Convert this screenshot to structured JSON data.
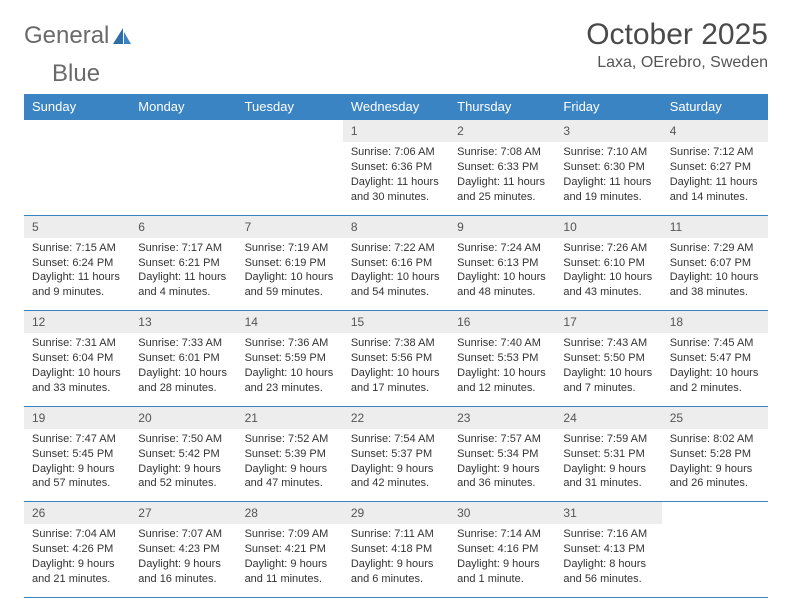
{
  "logo": {
    "text1": "General",
    "text2": "Blue",
    "brand_color": "#3b84c4"
  },
  "title": "October 2025",
  "subtitle": "Laxa, OErebro, Sweden",
  "colors": {
    "header_bg": "#3b84c4",
    "header_text": "#ffffff",
    "daynum_bg": "#ededed",
    "row_border": "#3b84c4",
    "body_text": "#333333"
  },
  "font": {
    "title_size": 30,
    "subtitle_size": 16,
    "dayhdr_size": 13,
    "cell_size": 11
  },
  "day_headers": [
    "Sunday",
    "Monday",
    "Tuesday",
    "Wednesday",
    "Thursday",
    "Friday",
    "Saturday"
  ],
  "weeks": [
    [
      {
        "n": "",
        "l": [
          "",
          "",
          ""
        ]
      },
      {
        "n": "",
        "l": [
          "",
          "",
          ""
        ]
      },
      {
        "n": "",
        "l": [
          "",
          "",
          ""
        ]
      },
      {
        "n": "1",
        "l": [
          "Sunrise: 7:06 AM",
          "Sunset: 6:36 PM",
          "Daylight: 11 hours and 30 minutes."
        ]
      },
      {
        "n": "2",
        "l": [
          "Sunrise: 7:08 AM",
          "Sunset: 6:33 PM",
          "Daylight: 11 hours and 25 minutes."
        ]
      },
      {
        "n": "3",
        "l": [
          "Sunrise: 7:10 AM",
          "Sunset: 6:30 PM",
          "Daylight: 11 hours and 19 minutes."
        ]
      },
      {
        "n": "4",
        "l": [
          "Sunrise: 7:12 AM",
          "Sunset: 6:27 PM",
          "Daylight: 11 hours and 14 minutes."
        ]
      }
    ],
    [
      {
        "n": "5",
        "l": [
          "Sunrise: 7:15 AM",
          "Sunset: 6:24 PM",
          "Daylight: 11 hours and 9 minutes."
        ]
      },
      {
        "n": "6",
        "l": [
          "Sunrise: 7:17 AM",
          "Sunset: 6:21 PM",
          "Daylight: 11 hours and 4 minutes."
        ]
      },
      {
        "n": "7",
        "l": [
          "Sunrise: 7:19 AM",
          "Sunset: 6:19 PM",
          "Daylight: 10 hours and 59 minutes."
        ]
      },
      {
        "n": "8",
        "l": [
          "Sunrise: 7:22 AM",
          "Sunset: 6:16 PM",
          "Daylight: 10 hours and 54 minutes."
        ]
      },
      {
        "n": "9",
        "l": [
          "Sunrise: 7:24 AM",
          "Sunset: 6:13 PM",
          "Daylight: 10 hours and 48 minutes."
        ]
      },
      {
        "n": "10",
        "l": [
          "Sunrise: 7:26 AM",
          "Sunset: 6:10 PM",
          "Daylight: 10 hours and 43 minutes."
        ]
      },
      {
        "n": "11",
        "l": [
          "Sunrise: 7:29 AM",
          "Sunset: 6:07 PM",
          "Daylight: 10 hours and 38 minutes."
        ]
      }
    ],
    [
      {
        "n": "12",
        "l": [
          "Sunrise: 7:31 AM",
          "Sunset: 6:04 PM",
          "Daylight: 10 hours and 33 minutes."
        ]
      },
      {
        "n": "13",
        "l": [
          "Sunrise: 7:33 AM",
          "Sunset: 6:01 PM",
          "Daylight: 10 hours and 28 minutes."
        ]
      },
      {
        "n": "14",
        "l": [
          "Sunrise: 7:36 AM",
          "Sunset: 5:59 PM",
          "Daylight: 10 hours and 23 minutes."
        ]
      },
      {
        "n": "15",
        "l": [
          "Sunrise: 7:38 AM",
          "Sunset: 5:56 PM",
          "Daylight: 10 hours and 17 minutes."
        ]
      },
      {
        "n": "16",
        "l": [
          "Sunrise: 7:40 AM",
          "Sunset: 5:53 PM",
          "Daylight: 10 hours and 12 minutes."
        ]
      },
      {
        "n": "17",
        "l": [
          "Sunrise: 7:43 AM",
          "Sunset: 5:50 PM",
          "Daylight: 10 hours and 7 minutes."
        ]
      },
      {
        "n": "18",
        "l": [
          "Sunrise: 7:45 AM",
          "Sunset: 5:47 PM",
          "Daylight: 10 hours and 2 minutes."
        ]
      }
    ],
    [
      {
        "n": "19",
        "l": [
          "Sunrise: 7:47 AM",
          "Sunset: 5:45 PM",
          "Daylight: 9 hours and 57 minutes."
        ]
      },
      {
        "n": "20",
        "l": [
          "Sunrise: 7:50 AM",
          "Sunset: 5:42 PM",
          "Daylight: 9 hours and 52 minutes."
        ]
      },
      {
        "n": "21",
        "l": [
          "Sunrise: 7:52 AM",
          "Sunset: 5:39 PM",
          "Daylight: 9 hours and 47 minutes."
        ]
      },
      {
        "n": "22",
        "l": [
          "Sunrise: 7:54 AM",
          "Sunset: 5:37 PM",
          "Daylight: 9 hours and 42 minutes."
        ]
      },
      {
        "n": "23",
        "l": [
          "Sunrise: 7:57 AM",
          "Sunset: 5:34 PM",
          "Daylight: 9 hours and 36 minutes."
        ]
      },
      {
        "n": "24",
        "l": [
          "Sunrise: 7:59 AM",
          "Sunset: 5:31 PM",
          "Daylight: 9 hours and 31 minutes."
        ]
      },
      {
        "n": "25",
        "l": [
          "Sunrise: 8:02 AM",
          "Sunset: 5:28 PM",
          "Daylight: 9 hours and 26 minutes."
        ]
      }
    ],
    [
      {
        "n": "26",
        "l": [
          "Sunrise: 7:04 AM",
          "Sunset: 4:26 PM",
          "Daylight: 9 hours and 21 minutes."
        ]
      },
      {
        "n": "27",
        "l": [
          "Sunrise: 7:07 AM",
          "Sunset: 4:23 PM",
          "Daylight: 9 hours and 16 minutes."
        ]
      },
      {
        "n": "28",
        "l": [
          "Sunrise: 7:09 AM",
          "Sunset: 4:21 PM",
          "Daylight: 9 hours and 11 minutes."
        ]
      },
      {
        "n": "29",
        "l": [
          "Sunrise: 7:11 AM",
          "Sunset: 4:18 PM",
          "Daylight: 9 hours and 6 minutes."
        ]
      },
      {
        "n": "30",
        "l": [
          "Sunrise: 7:14 AM",
          "Sunset: 4:16 PM",
          "Daylight: 9 hours and 1 minute."
        ]
      },
      {
        "n": "31",
        "l": [
          "Sunrise: 7:16 AM",
          "Sunset: 4:13 PM",
          "Daylight: 8 hours and 56 minutes."
        ]
      },
      {
        "n": "",
        "l": [
          "",
          "",
          ""
        ]
      }
    ]
  ]
}
